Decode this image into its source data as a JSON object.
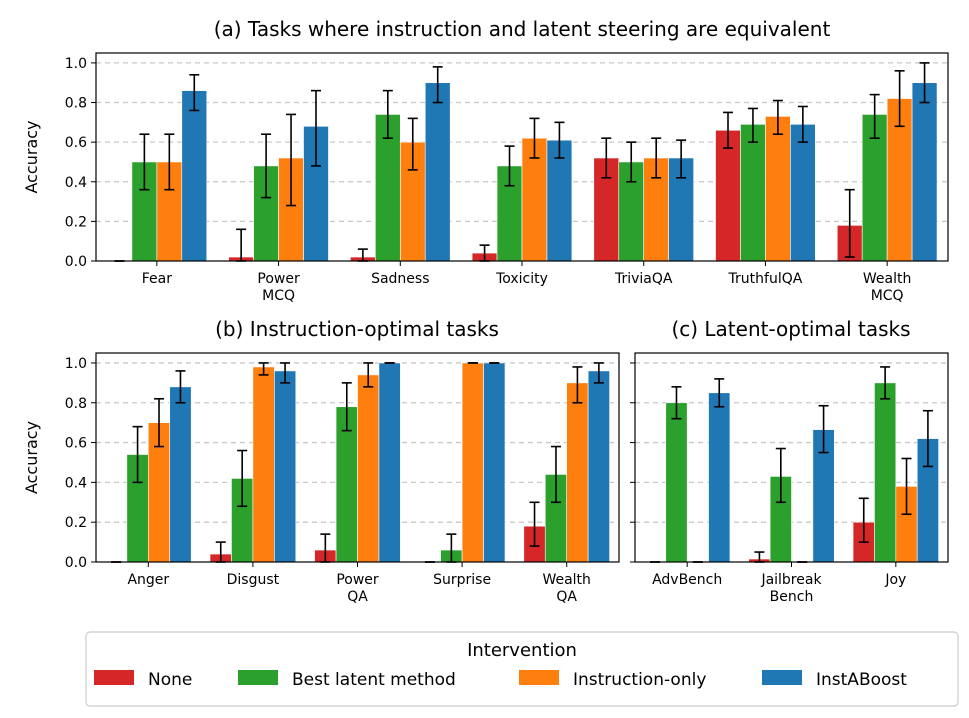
{
  "legend": {
    "title": "Intervention",
    "entries": [
      {
        "name": "None",
        "color": "#d62728"
      },
      {
        "name": "Best latent method",
        "color": "#2ca02c"
      },
      {
        "name": "Instruction-only",
        "color": "#ff7f0e"
      },
      {
        "name": "InstABoost",
        "color": "#1f77b4"
      }
    ]
  },
  "chart_data": [
    {
      "id": "a",
      "type": "bar",
      "title": "(a) Tasks where instruction and latent steering are equivalent",
      "ylabel": "Accuracy",
      "ylim": [
        0,
        1.05
      ],
      "yticks": [
        "0.0",
        "0.2",
        "0.4",
        "0.6",
        "0.8",
        "1.0"
      ],
      "grid": "horizontal dashed",
      "categories": [
        [
          "Fear"
        ],
        [
          "Power",
          "MCQ"
        ],
        [
          "Sadness"
        ],
        [
          "Toxicity"
        ],
        [
          "TriviaQA"
        ],
        [
          "TruthfulQA"
        ],
        [
          "Wealth",
          "MCQ"
        ]
      ],
      "series": [
        {
          "name": "None",
          "values": [
            0.0,
            0.02,
            0.02,
            0.04,
            0.52,
            0.66,
            0.18
          ],
          "err_low": [
            0.0,
            0.0,
            0.0,
            0.0,
            0.42,
            0.57,
            0.02
          ],
          "err_high": [
            0.0,
            0.16,
            0.06,
            0.08,
            0.62,
            0.75,
            0.36
          ]
        },
        {
          "name": "Best latent method",
          "values": [
            0.5,
            0.48,
            0.74,
            0.48,
            0.5,
            0.69,
            0.74
          ],
          "err_low": [
            0.36,
            0.32,
            0.62,
            0.38,
            0.4,
            0.6,
            0.62
          ],
          "err_high": [
            0.64,
            0.64,
            0.86,
            0.58,
            0.6,
            0.77,
            0.84
          ]
        },
        {
          "name": "Instruction-only",
          "values": [
            0.5,
            0.52,
            0.6,
            0.62,
            0.52,
            0.73,
            0.82
          ],
          "err_low": [
            0.36,
            0.28,
            0.46,
            0.52,
            0.42,
            0.64,
            0.68
          ],
          "err_high": [
            0.64,
            0.74,
            0.72,
            0.72,
            0.62,
            0.81,
            0.96
          ]
        },
        {
          "name": "InstABoost",
          "values": [
            0.86,
            0.68,
            0.9,
            0.61,
            0.52,
            0.69,
            0.9
          ],
          "err_low": [
            0.76,
            0.48,
            0.8,
            0.52,
            0.42,
            0.6,
            0.8
          ],
          "err_high": [
            0.94,
            0.86,
            0.98,
            0.7,
            0.61,
            0.78,
            1.0
          ]
        }
      ]
    },
    {
      "id": "b",
      "type": "bar",
      "title": "(b) Instruction-optimal tasks",
      "ylabel": "Accuracy",
      "ylim": [
        0,
        1.05
      ],
      "yticks": [
        "0.0",
        "0.2",
        "0.4",
        "0.6",
        "0.8",
        "1.0"
      ],
      "grid": "horizontal dashed",
      "categories": [
        [
          "Anger"
        ],
        [
          "Disgust"
        ],
        [
          "Power",
          "QA"
        ],
        [
          "Surprise"
        ],
        [
          "Wealth",
          "QA"
        ]
      ],
      "series": [
        {
          "name": "None",
          "values": [
            0.0,
            0.04,
            0.06,
            0.0,
            0.18
          ],
          "err_low": [
            0.0,
            0.0,
            0.0,
            0.0,
            0.08
          ],
          "err_high": [
            0.0,
            0.1,
            0.14,
            0.0,
            0.3
          ]
        },
        {
          "name": "Best latent method",
          "values": [
            0.54,
            0.42,
            0.78,
            0.06,
            0.44
          ],
          "err_low": [
            0.4,
            0.28,
            0.66,
            0.0,
            0.3
          ],
          "err_high": [
            0.68,
            0.56,
            0.9,
            0.14,
            0.58
          ]
        },
        {
          "name": "Instruction-only",
          "values": [
            0.7,
            0.98,
            0.94,
            1.0,
            0.9
          ],
          "err_low": [
            0.58,
            0.94,
            0.88,
            1.0,
            0.8
          ],
          "err_high": [
            0.82,
            1.0,
            1.0,
            1.0,
            0.98
          ]
        },
        {
          "name": "InstABoost",
          "values": [
            0.88,
            0.96,
            1.0,
            1.0,
            0.96
          ],
          "err_low": [
            0.8,
            0.9,
            1.0,
            1.0,
            0.9
          ],
          "err_high": [
            0.96,
            1.0,
            1.0,
            1.0,
            1.0
          ]
        }
      ]
    },
    {
      "id": "c",
      "type": "bar",
      "title": "(c) Latent-optimal tasks",
      "ylim": [
        0,
        1.05
      ],
      "grid": "horizontal dashed",
      "categories": [
        [
          "AdvBench"
        ],
        [
          "Jailbreak",
          "Bench"
        ],
        [
          "Joy"
        ]
      ],
      "series": [
        {
          "name": "None",
          "values": [
            0.0,
            0.015,
            0.2
          ],
          "err_low": [
            0.0,
            0.0,
            0.1
          ],
          "err_high": [
            0.0,
            0.05,
            0.32
          ]
        },
        {
          "name": "Best latent method",
          "values": [
            0.8,
            0.43,
            0.9
          ],
          "err_low": [
            0.72,
            0.3,
            0.82
          ],
          "err_high": [
            0.88,
            0.57,
            0.98
          ]
        },
        {
          "name": "Instruction-only",
          "values": [
            0.0,
            0.0,
            0.38
          ],
          "err_low": [
            0.0,
            0.0,
            0.24
          ],
          "err_high": [
            0.0,
            0.0,
            0.52
          ]
        },
        {
          "name": "InstABoost",
          "values": [
            0.85,
            0.665,
            0.62
          ],
          "err_low": [
            0.78,
            0.55,
            0.48
          ],
          "err_high": [
            0.92,
            0.785,
            0.76
          ]
        }
      ]
    }
  ]
}
